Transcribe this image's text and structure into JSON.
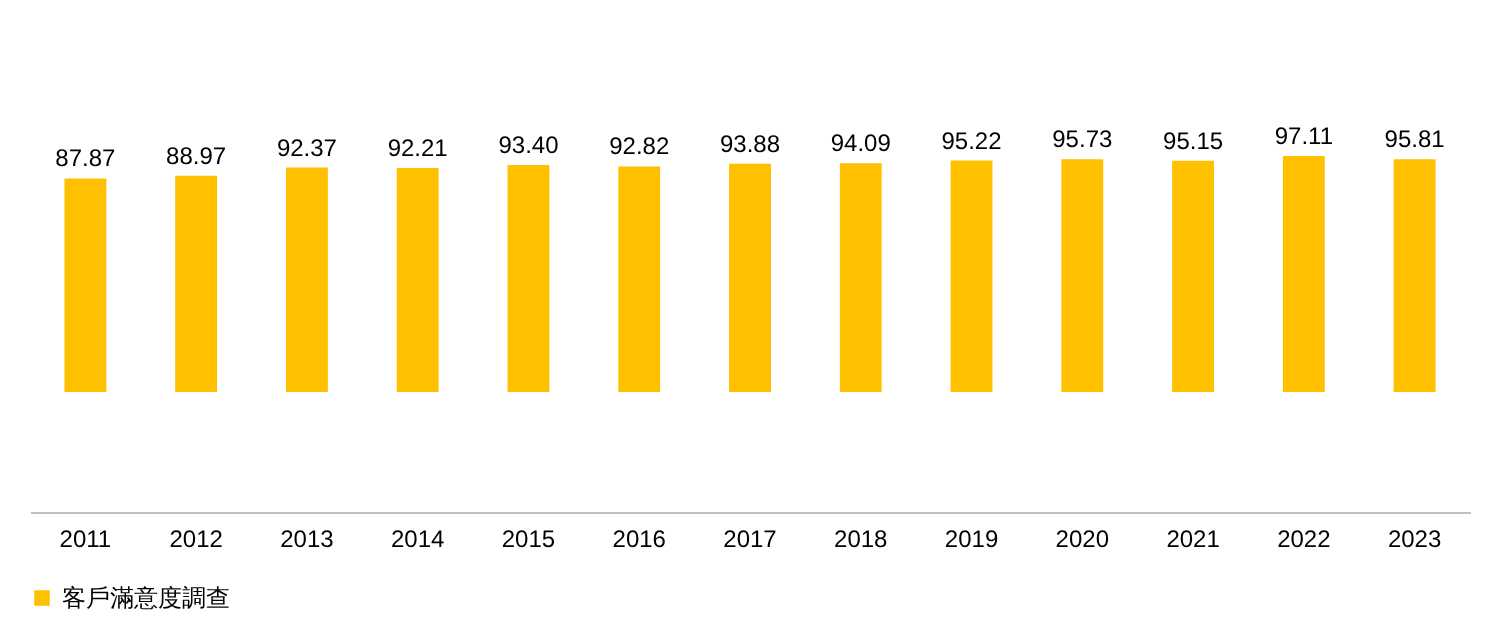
{
  "chart_data": {
    "type": "bar",
    "categories": [
      "2011",
      "2012",
      "2013",
      "2014",
      "2015",
      "2016",
      "2017",
      "2018",
      "2019",
      "2020",
      "2021",
      "2022",
      "2023"
    ],
    "series": [
      {
        "name": "客戶滿意度調查",
        "color": "#ffc000",
        "values": [
          87.87,
          88.97,
          92.37,
          92.21,
          93.4,
          92.82,
          93.88,
          94.09,
          95.22,
          95.73,
          95.15,
          97.11,
          95.81
        ],
        "value_labels": [
          "87.87",
          "88.97",
          "92.37",
          "92.21",
          "93.40",
          "92.82",
          "93.88",
          "94.09",
          "95.22",
          "95.73",
          "95.15",
          "97.11",
          "95.81"
        ]
      }
    ],
    "legend": "bottom"
  }
}
